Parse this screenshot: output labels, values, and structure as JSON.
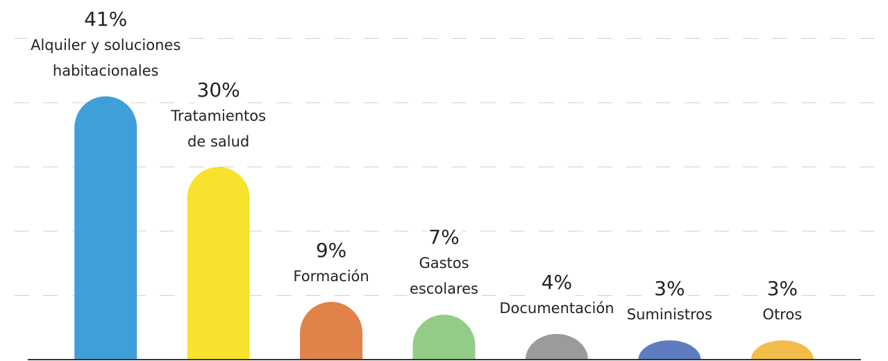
{
  "chart_data": {
    "type": "bar",
    "categories": [
      "Alquiler y soluciones\nhabitacionales",
      "Tratamientos\nde salud",
      "Formación",
      "Gastos\nescolares",
      "Documentación",
      "Suministros",
      "Otros"
    ],
    "values": [
      41,
      30,
      9,
      7,
      4,
      3,
      3
    ],
    "value_labels": [
      "41%",
      "30%",
      "9%",
      "7%",
      "4%",
      "3%",
      "3%"
    ],
    "colors": [
      "#3f9fd8",
      "#f7e22e",
      "#e0824a",
      "#93cc87",
      "#9b9b9b",
      "#5f7cc0",
      "#f2bd4a"
    ],
    "ylim": [
      0,
      56
    ],
    "yticks": [
      10,
      20,
      30,
      40,
      50
    ],
    "grid": true
  }
}
